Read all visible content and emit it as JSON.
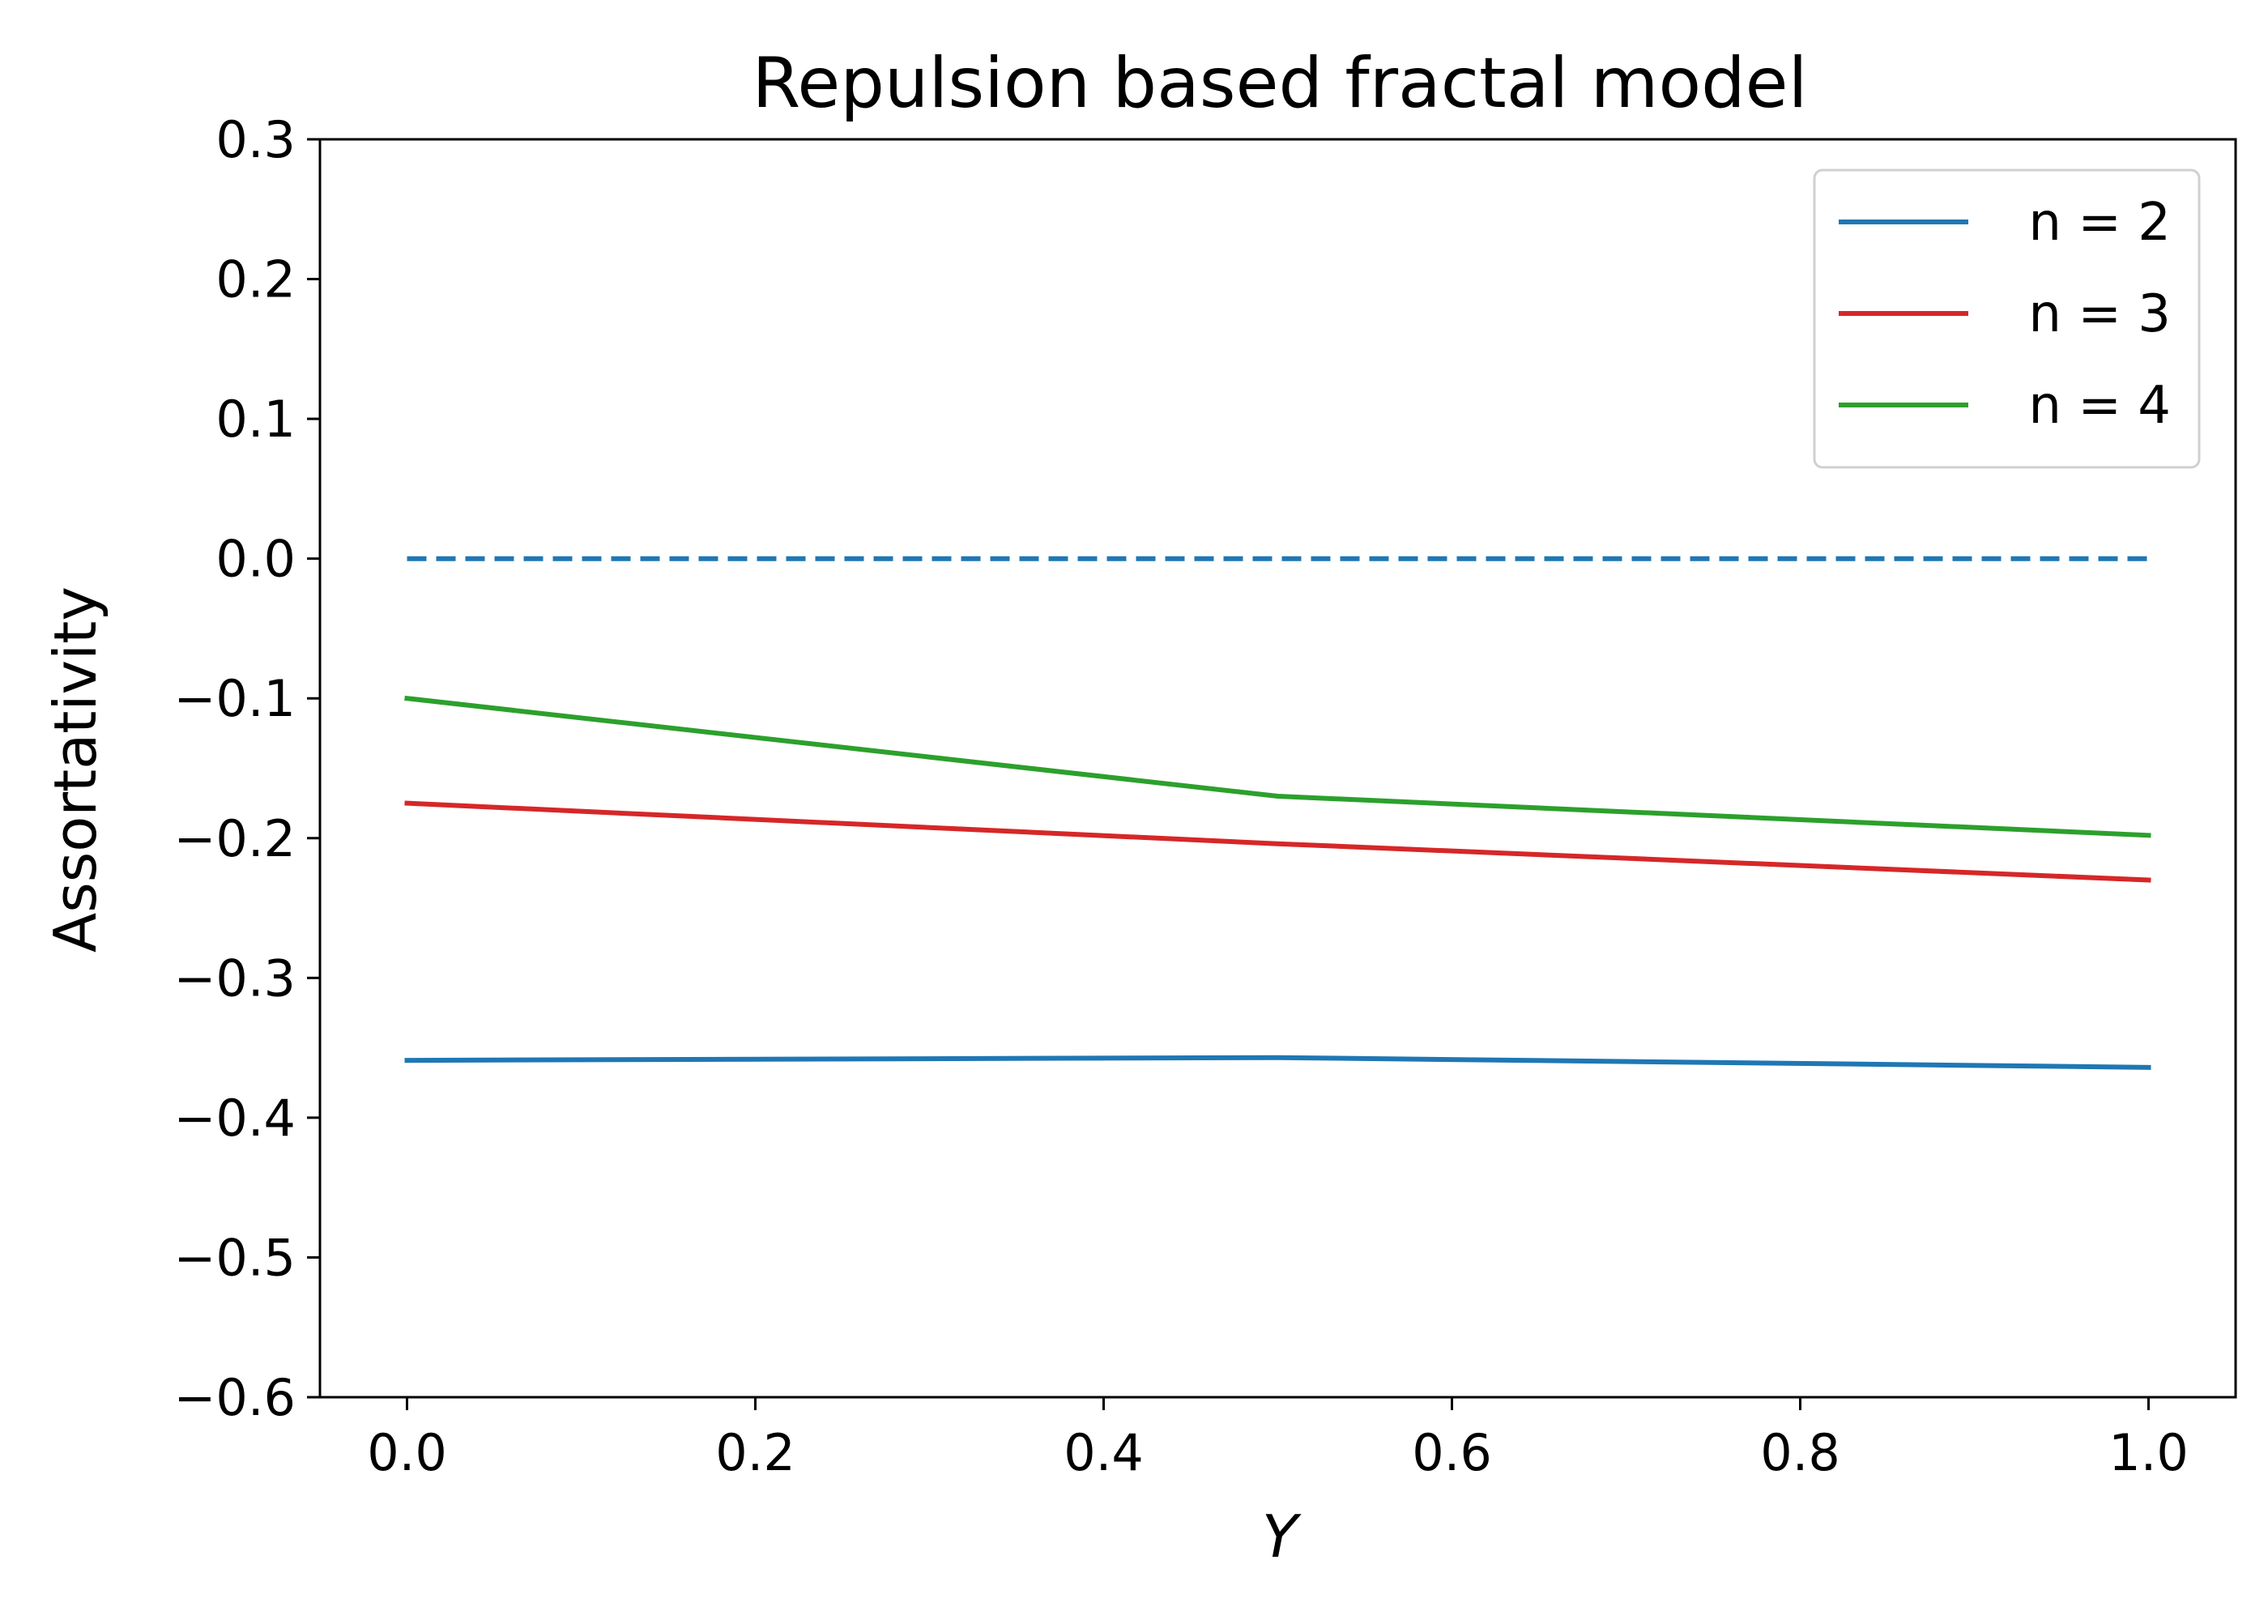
{
  "chart_data": {
    "type": "line",
    "title": "Repulsion based fractal model",
    "xlabel": "Y",
    "ylabel": "Assortativity",
    "xlim": [
      -0.05,
      1.05
    ],
    "ylim": [
      -0.6,
      0.3
    ],
    "x_ticks": [
      "0.0",
      "0.2",
      "0.4",
      "0.6",
      "0.8",
      "1.0"
    ],
    "x_tick_values": [
      0.0,
      0.2,
      0.4,
      0.6,
      0.8,
      1.0
    ],
    "y_ticks": [
      "0.3",
      "0.2",
      "0.1",
      "0.0",
      "−0.1",
      "−0.2",
      "−0.3",
      "−0.4",
      "−0.5",
      "−0.6"
    ],
    "y_tick_values": [
      0.3,
      0.2,
      0.1,
      0.0,
      -0.1,
      -0.2,
      -0.3,
      -0.4,
      -0.5,
      -0.6
    ],
    "grid": false,
    "legend_position": "top-right",
    "x": [
      0.0,
      0.5,
      1.0
    ],
    "series": [
      {
        "name": "n = 2",
        "color": "#1f77b4",
        "values": [
          -0.359,
          -0.357,
          -0.364
        ]
      },
      {
        "name": "n = 3",
        "color": "#d62728",
        "values": [
          -0.175,
          -0.204,
          -0.23
        ]
      },
      {
        "name": "n = 4",
        "color": "#2ca02c",
        "values": [
          -0.1,
          -0.17,
          -0.198
        ]
      }
    ],
    "reference_lines": [
      {
        "style": "dashed",
        "color": "#1f77b4",
        "x": [
          0.0,
          1.0
        ],
        "values": [
          0.0,
          0.0
        ]
      }
    ]
  }
}
